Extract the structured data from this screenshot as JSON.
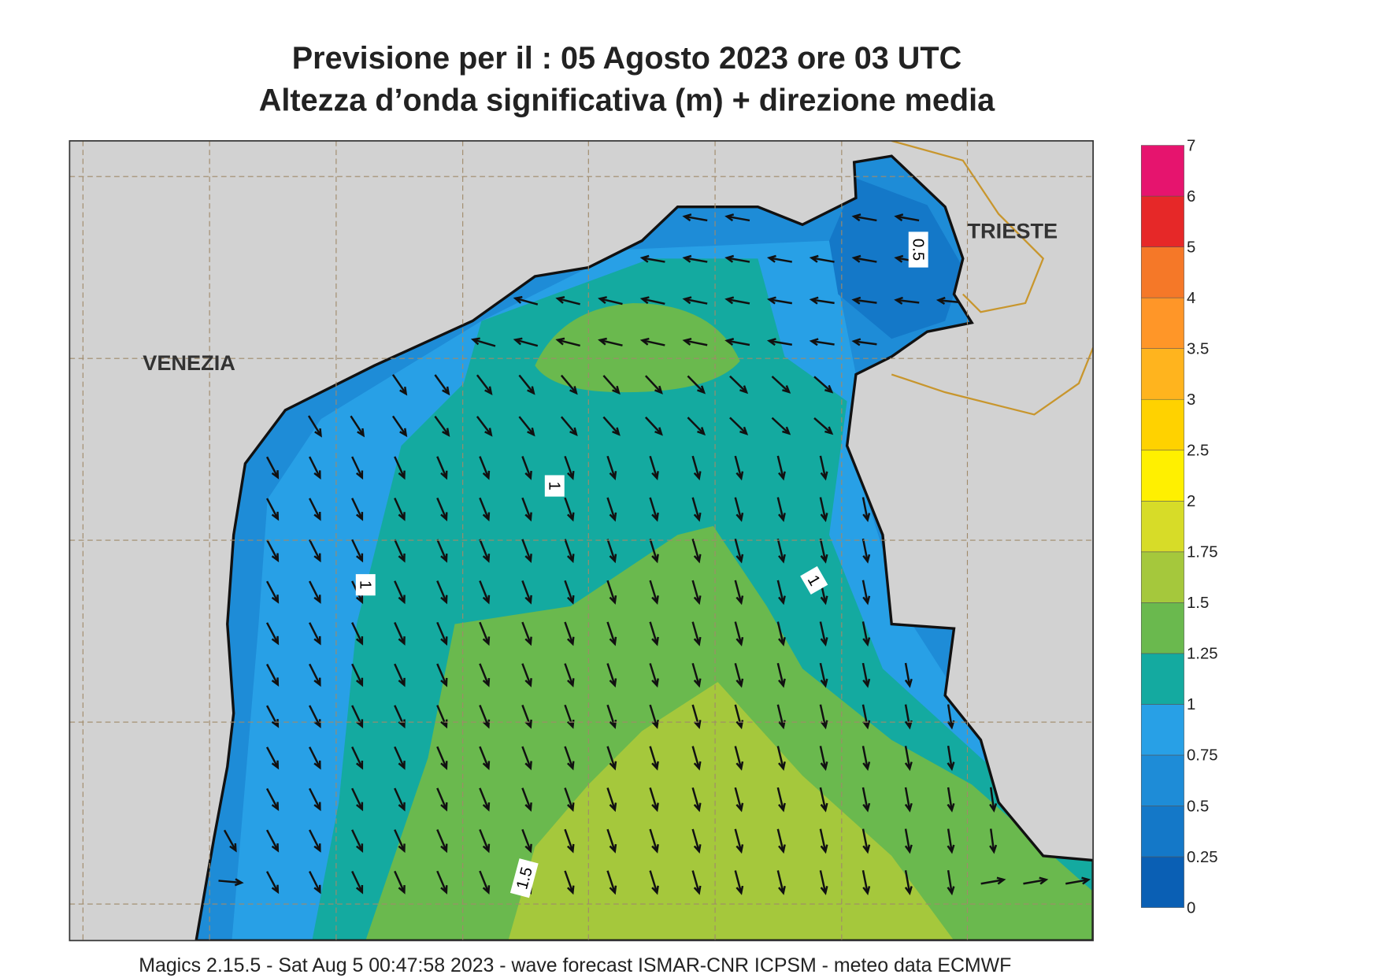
{
  "header": {
    "title": "Previsione per il  :  05   Agosto  2023   ore 03 UTC",
    "subtitle": "Altezza d’onda significativa (m) + direzione media"
  },
  "map": {
    "places": [
      "VENEZIA",
      "TRIESTE"
    ],
    "contour_labels": [
      "0.5",
      "1",
      "1",
      "1",
      "1.5"
    ]
  },
  "legend": {
    "labels": [
      "0",
      "0.25",
      "0.5",
      "0.75",
      "1",
      "1.25",
      "1.5",
      "1.75",
      "2",
      "2.5",
      "3",
      "3.5",
      "4",
      "5",
      "6",
      "7"
    ],
    "colors": [
      "#0a5fb4",
      "#1478c8",
      "#1e8cd7",
      "#28a0e6",
      "#14aaa0",
      "#6ab94e",
      "#a5c83c",
      "#d7dc28",
      "#fff000",
      "#ffd200",
      "#ffb41e",
      "#ff9628",
      "#f57828",
      "#e62828",
      "#e6146e"
    ]
  },
  "footer": "Magics 2.15.5 - Sat Aug  5 00:47:58 2023 - wave forecast  ISMAR-CNR  ICPSM - meteo data   ECMWF"
}
